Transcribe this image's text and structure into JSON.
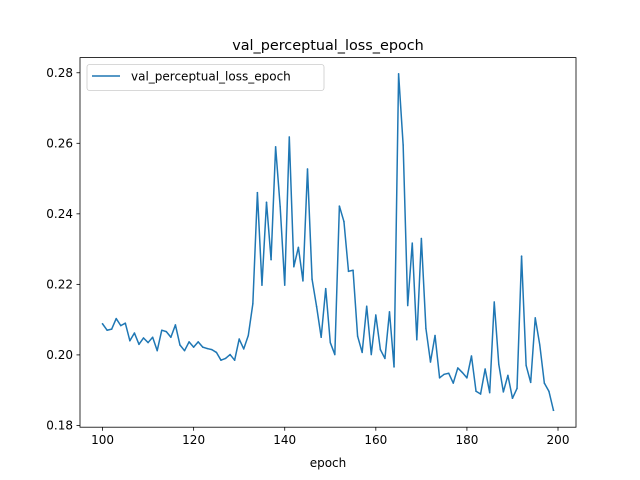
{
  "chart_data": {
    "type": "line",
    "title": "val_perceptual_loss_epoch",
    "xlabel": "epoch",
    "ylabel": "",
    "xlim": [
      95.05,
      203.95
    ],
    "ylim": [
      0.1795,
      0.2843
    ],
    "x_ticks": [
      100,
      120,
      140,
      160,
      180,
      200
    ],
    "y_ticks": [
      0.18,
      0.2,
      0.22,
      0.24,
      0.26,
      0.28
    ],
    "y_tick_labels": [
      "0.18",
      "0.20",
      "0.22",
      "0.24",
      "0.26",
      "0.28"
    ],
    "grid": false,
    "legend_position": "upper left",
    "series": [
      {
        "name": "val_perceptual_loss_epoch",
        "color": "#1f77b4",
        "x": [
          100,
          101,
          102,
          103,
          104,
          105,
          106,
          107,
          108,
          109,
          110,
          111,
          112,
          113,
          114,
          115,
          116,
          117,
          118,
          119,
          120,
          121,
          122,
          123,
          124,
          125,
          126,
          127,
          128,
          129,
          130,
          131,
          132,
          133,
          134,
          135,
          136,
          137,
          138,
          139,
          140,
          141,
          142,
          143,
          144,
          145,
          146,
          147,
          148,
          149,
          150,
          151,
          152,
          153,
          154,
          155,
          156,
          157,
          158,
          159,
          160,
          161,
          162,
          163,
          164,
          165,
          166,
          167,
          168,
          169,
          170,
          171,
          172,
          173,
          174,
          175,
          176,
          177,
          178,
          179,
          180,
          181,
          182,
          183,
          184,
          185,
          186,
          187,
          188,
          189,
          190,
          191,
          192,
          193,
          194,
          195,
          196,
          197,
          198,
          199
        ],
        "y": [
          0.2088,
          0.207,
          0.2073,
          0.2103,
          0.2083,
          0.209,
          0.204,
          0.2062,
          0.203,
          0.2048,
          0.2035,
          0.205,
          0.2012,
          0.207,
          0.2066,
          0.205,
          0.2085,
          0.2028,
          0.2012,
          0.2037,
          0.2022,
          0.2037,
          0.2022,
          0.2018,
          0.2015,
          0.2007,
          0.1985,
          0.199,
          0.2001,
          0.1985,
          0.2045,
          0.2017,
          0.2055,
          0.2145,
          0.246,
          0.2198,
          0.2433,
          0.227,
          0.259,
          0.242,
          0.2198,
          0.2618,
          0.225,
          0.2305,
          0.221,
          0.2527,
          0.2215,
          0.2137,
          0.205,
          0.2188,
          0.2035,
          0.2001,
          0.2422,
          0.2378,
          0.2237,
          0.224,
          0.2053,
          0.2007,
          0.2138,
          0.2001,
          0.2113,
          0.2015,
          0.199,
          0.2122,
          0.1966,
          0.2797,
          0.2595,
          0.214,
          0.2317,
          0.2043,
          0.233,
          0.2075,
          0.198,
          0.2055,
          0.1935,
          0.1945,
          0.1948,
          0.192,
          0.1963,
          0.195,
          0.1935,
          0.1997,
          0.1897,
          0.1889,
          0.196,
          0.1893,
          0.215,
          0.1973,
          0.1895,
          0.1942,
          0.1877,
          0.1905,
          0.228,
          0.197,
          0.1922,
          0.2105,
          0.2028,
          0.192,
          0.1897,
          0.1843
        ]
      }
    ]
  }
}
